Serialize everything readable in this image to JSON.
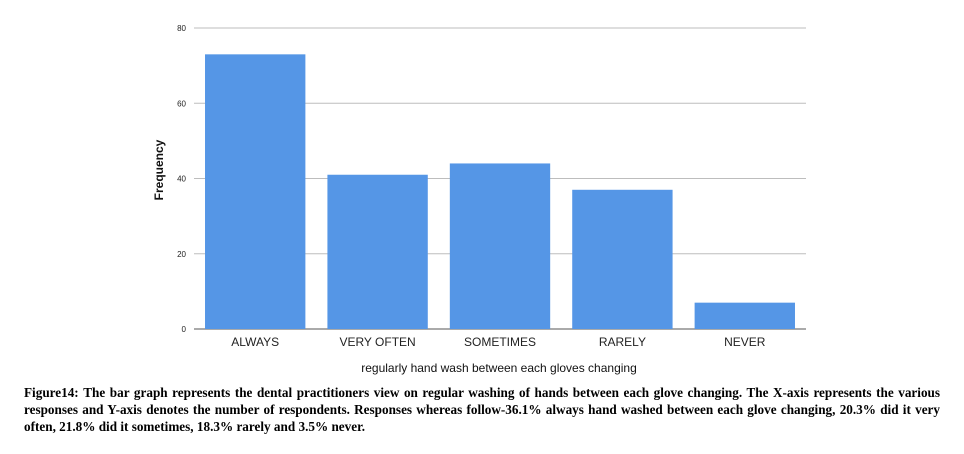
{
  "chart_data": {
    "type": "bar",
    "categories": [
      "ALWAYS",
      "VERY OFTEN",
      "SOMETIMES",
      "RARELY",
      "NEVER"
    ],
    "values": [
      73,
      41,
      44,
      37,
      7
    ],
    "title": "",
    "xlabel": "regularly hand wash between each gloves changing",
    "ylabel": "Frequency",
    "ylim": [
      0,
      80
    ],
    "yticks": [
      0,
      20,
      40,
      60,
      80
    ],
    "grid": true,
    "bar_color": "#5596e6"
  },
  "caption": {
    "title": "Figure14:",
    "text": "The bar graph represents the dental practitioners view on regular washing of hands between each glove changing. The X-axis represents the various responses and Y-axis denotes the number of respondents. Responses whereas follow-36.1% always hand washed between each glove changing, 20.3% did it very often, 21.8% did it sometimes, 18.3% rarely and 3.5% never."
  }
}
